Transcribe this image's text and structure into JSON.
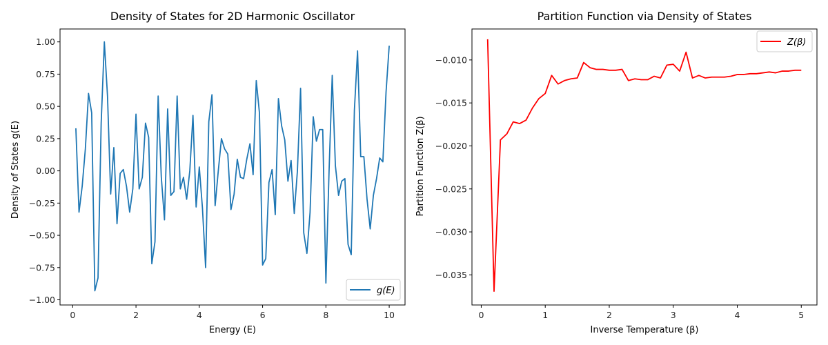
{
  "chart_data": [
    {
      "type": "line",
      "title": "Density of States for 2D Harmonic Oscillator",
      "xlabel": "Energy (E)",
      "ylabel": "Density of States g(E)",
      "xlim": [
        -0.4,
        10.5
      ],
      "ylim": [
        -1.04,
        1.1
      ],
      "xticks": [
        0,
        2,
        4,
        6,
        8,
        10
      ],
      "xtick_labels": [
        "0",
        "2",
        "4",
        "6",
        "8",
        "10"
      ],
      "yticks": [
        -1.0,
        -0.75,
        -0.5,
        -0.25,
        0.0,
        0.25,
        0.5,
        0.75,
        1.0
      ],
      "ytick_labels": [
        "−1.00",
        "−0.75",
        "−0.50",
        "−0.25",
        "0.00",
        "0.25",
        "0.50",
        "0.75",
        "1.00"
      ],
      "grid": false,
      "legend_position": "lower-right",
      "series": [
        {
          "name": "g(E)",
          "color": "#1f77b4",
          "x": [
            0.1,
            0.2,
            0.3,
            0.4,
            0.5,
            0.6,
            0.7,
            0.8,
            0.9,
            1.0,
            1.1,
            1.2,
            1.3,
            1.4,
            1.5,
            1.6,
            1.7,
            1.8,
            1.9,
            2.0,
            2.1,
            2.2,
            2.3,
            2.4,
            2.5,
            2.6,
            2.7,
            2.8,
            2.9,
            3.0,
            3.1,
            3.2,
            3.3,
            3.4,
            3.5,
            3.6,
            3.7,
            3.8,
            3.9,
            4.0,
            4.1,
            4.2,
            4.3,
            4.4,
            4.5,
            4.6,
            4.7,
            4.8,
            4.9,
            5.0,
            5.1,
            5.2,
            5.3,
            5.4,
            5.5,
            5.6,
            5.7,
            5.8,
            5.9,
            6.0,
            6.1,
            6.2,
            6.3,
            6.4,
            6.5,
            6.6,
            6.7,
            6.8,
            6.9,
            7.0,
            7.1,
            7.2,
            7.3,
            7.4,
            7.5,
            7.6,
            7.7,
            7.8,
            7.9,
            8.0,
            8.1,
            8.2,
            8.3,
            8.4,
            8.5,
            8.6,
            8.7,
            8.8,
            8.9,
            9.0,
            9.1,
            9.2,
            9.3,
            9.4,
            9.5,
            9.6,
            9.7,
            9.8,
            9.9,
            10.0
          ],
          "y": [
            0.33,
            -0.32,
            -0.12,
            0.17,
            0.6,
            0.45,
            -0.93,
            -0.83,
            0.37,
            1.0,
            0.58,
            -0.18,
            0.18,
            -0.41,
            -0.02,
            0.01,
            -0.12,
            -0.32,
            -0.14,
            0.44,
            -0.14,
            -0.05,
            0.37,
            0.26,
            -0.72,
            -0.55,
            0.58,
            -0.05,
            -0.38,
            0.48,
            -0.19,
            -0.16,
            0.58,
            -0.14,
            -0.05,
            -0.22,
            0.0,
            0.43,
            -0.28,
            0.03,
            -0.29,
            -0.75,
            0.38,
            0.59,
            -0.27,
            0.0,
            0.25,
            0.17,
            0.13,
            -0.3,
            -0.18,
            0.09,
            -0.05,
            -0.06,
            0.09,
            0.21,
            -0.03,
            0.7,
            0.45,
            -0.73,
            -0.68,
            -0.09,
            0.01,
            -0.34,
            0.56,
            0.35,
            0.24,
            -0.08,
            0.08,
            -0.33,
            0.0,
            0.64,
            -0.48,
            -0.64,
            -0.32,
            0.42,
            0.23,
            0.32,
            0.32,
            -0.87,
            0.0,
            0.74,
            0.04,
            -0.19,
            -0.08,
            -0.06,
            -0.57,
            -0.65,
            0.47,
            0.93,
            0.11,
            0.11,
            -0.22,
            -0.45,
            -0.19,
            -0.06,
            0.1,
            0.07,
            0.61,
            0.97
          ]
        }
      ]
    },
    {
      "type": "line",
      "title": "Partition Function via Density of States",
      "xlabel": "Inverse Temperature (β)",
      "ylabel": "Partition Function Z(β)",
      "xlim": [
        -0.145,
        5.245
      ],
      "ylim": [
        -0.0385,
        -0.0064
      ],
      "xticks": [
        0,
        1,
        2,
        3,
        4,
        5
      ],
      "xtick_labels": [
        "0",
        "1",
        "2",
        "3",
        "4",
        "5"
      ],
      "yticks": [
        -0.035,
        -0.03,
        -0.025,
        -0.02,
        -0.015,
        -0.01
      ],
      "ytick_labels": [
        "−0.035",
        "−0.030",
        "−0.025",
        "−0.020",
        "−0.015",
        "−0.010"
      ],
      "grid": false,
      "legend_position": "upper-right",
      "series": [
        {
          "name": "Z(β)",
          "color": "#ff0000",
          "x": [
            0.1,
            0.2,
            0.3,
            0.4,
            0.5,
            0.6,
            0.7,
            0.8,
            0.9,
            1.0,
            1.1,
            1.2,
            1.3,
            1.4,
            1.5,
            1.6,
            1.7,
            1.8,
            1.9,
            2.0,
            2.1,
            2.2,
            2.3,
            2.4,
            2.5,
            2.6,
            2.7,
            2.8,
            2.9,
            3.0,
            3.1,
            3.2,
            3.3,
            3.4,
            3.5,
            3.6,
            3.7,
            3.8,
            3.9,
            4.0,
            4.1,
            4.2,
            4.3,
            4.4,
            4.5,
            4.6,
            4.7,
            4.8,
            4.9,
            5.0
          ],
          "y": [
            -0.0076,
            -0.0369,
            -0.0193,
            -0.0186,
            -0.0172,
            -0.0174,
            -0.017,
            -0.0156,
            -0.0145,
            -0.0139,
            -0.0118,
            -0.0128,
            -0.0124,
            -0.0122,
            -0.0121,
            -0.0103,
            -0.0109,
            -0.0111,
            -0.0111,
            -0.0112,
            -0.0112,
            -0.0111,
            -0.0124,
            -0.0122,
            -0.0123,
            -0.0123,
            -0.0119,
            -0.0121,
            -0.0106,
            -0.0105,
            -0.0113,
            -0.0091,
            -0.0121,
            -0.0118,
            -0.0121,
            -0.012,
            -0.012,
            -0.012,
            -0.0119,
            -0.0117,
            -0.0117,
            -0.0116,
            -0.0116,
            -0.0115,
            -0.0114,
            -0.0115,
            -0.0113,
            -0.0113,
            -0.0112,
            -0.0112
          ]
        }
      ]
    }
  ]
}
